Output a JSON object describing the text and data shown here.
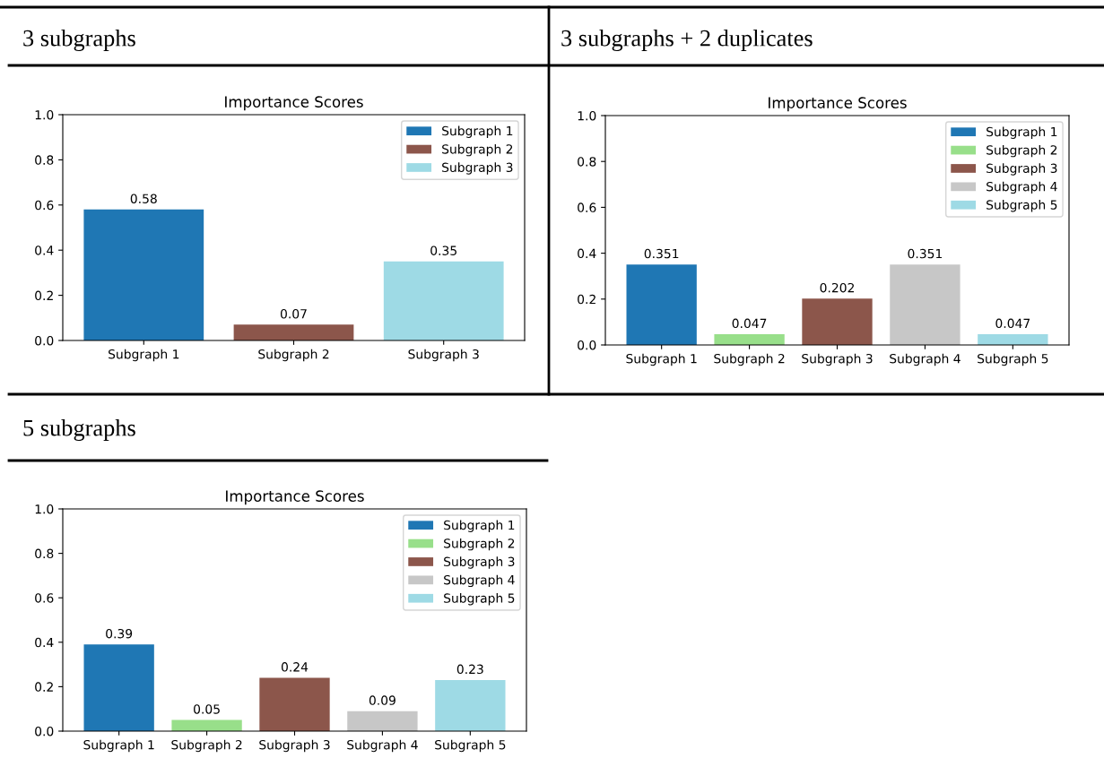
{
  "chart_data": [
    {
      "type": "bar",
      "subtitle": "3 subgraphs",
      "title": "Importance Scores",
      "categories": [
        "Subgraph 1",
        "Subgraph 2",
        "Subgraph 3"
      ],
      "stacked": true,
      "series": [
        {
          "name": "Subgraph 1",
          "color": "#1f77b4",
          "values": [
            0.58,
            null,
            null
          ]
        },
        {
          "name": "Subgraph 2",
          "color": "#8c564b",
          "values": [
            null,
            0.07,
            null
          ]
        },
        {
          "name": "Subgraph 3",
          "color": "#9edae5",
          "values": [
            null,
            null,
            0.35
          ]
        }
      ],
      "data_labels": true,
      "ylim": [
        0,
        1
      ],
      "yticks": [
        {
          "value": 0,
          "label": "0.0"
        },
        {
          "value": 0.2,
          "label": "0.2"
        },
        {
          "value": 0.4,
          "label": "0.4"
        },
        {
          "value": 0.6,
          "label": "0.6"
        },
        {
          "value": 0.8,
          "label": "0.8"
        },
        {
          "value": 1,
          "label": "1.0"
        }
      ],
      "legend": "top right"
    },
    {
      "type": "bar",
      "subtitle": "3 subgraphs + 2 duplicates",
      "title": "Importance Scores",
      "categories": [
        "Subgraph 1",
        "Subgraph 2",
        "Subgraph 3",
        "Subgraph 4",
        "Subgraph 5"
      ],
      "stacked": true,
      "series": [
        {
          "name": "Subgraph 1",
          "color": "#1f77b4",
          "values": [
            0.351,
            null,
            null,
            null,
            null
          ]
        },
        {
          "name": "Subgraph 2",
          "color": "#98df8a",
          "values": [
            null,
            0.047,
            null,
            null,
            null
          ]
        },
        {
          "name": "Subgraph 3",
          "color": "#8c564b",
          "values": [
            null,
            null,
            0.202,
            null,
            null
          ]
        },
        {
          "name": "Subgraph 4",
          "color": "#c7c7c7",
          "values": [
            null,
            null,
            null,
            0.351,
            null
          ]
        },
        {
          "name": "Subgraph 5",
          "color": "#9edae5",
          "values": [
            null,
            null,
            null,
            null,
            0.047
          ]
        }
      ],
      "data_labels": true,
      "ylim": [
        0,
        1
      ],
      "yticks": [
        {
          "value": 0,
          "label": "0.0"
        },
        {
          "value": 0.2,
          "label": "0.2"
        },
        {
          "value": 0.4,
          "label": "0.4"
        },
        {
          "value": 0.6,
          "label": "0.6"
        },
        {
          "value": 0.8,
          "label": "0.8"
        },
        {
          "value": 1,
          "label": "1.0"
        }
      ],
      "legend": "top right"
    },
    {
      "type": "bar",
      "subtitle": "5 subgraphs",
      "title": "Importance Scores",
      "categories": [
        "Subgraph 1",
        "Subgraph 2",
        "Subgraph 3",
        "Subgraph 4",
        "Subgraph 5"
      ],
      "stacked": true,
      "series": [
        {
          "name": "Subgraph 1",
          "color": "#1f77b4",
          "values": [
            0.39,
            null,
            null,
            null,
            null
          ]
        },
        {
          "name": "Subgraph 2",
          "color": "#98df8a",
          "values": [
            null,
            0.05,
            null,
            null,
            null
          ]
        },
        {
          "name": "Subgraph 3",
          "color": "#8c564b",
          "values": [
            null,
            null,
            0.24,
            null,
            null
          ]
        },
        {
          "name": "Subgraph 4",
          "color": "#c7c7c7",
          "values": [
            null,
            null,
            null,
            0.09,
            null
          ]
        },
        {
          "name": "Subgraph 5",
          "color": "#9edae5",
          "values": [
            null,
            null,
            null,
            null,
            0.23
          ]
        }
      ],
      "data_labels": true,
      "ylim": [
        0,
        1
      ],
      "yticks": [
        {
          "value": 0,
          "label": "0.0"
        },
        {
          "value": 0.2,
          "label": "0.2"
        },
        {
          "value": 0.4,
          "label": "0.4"
        },
        {
          "value": 0.6,
          "label": "0.6"
        },
        {
          "value": 0.8,
          "label": "0.8"
        },
        {
          "value": 1,
          "label": "1.0"
        }
      ],
      "legend": "top right"
    }
  ]
}
